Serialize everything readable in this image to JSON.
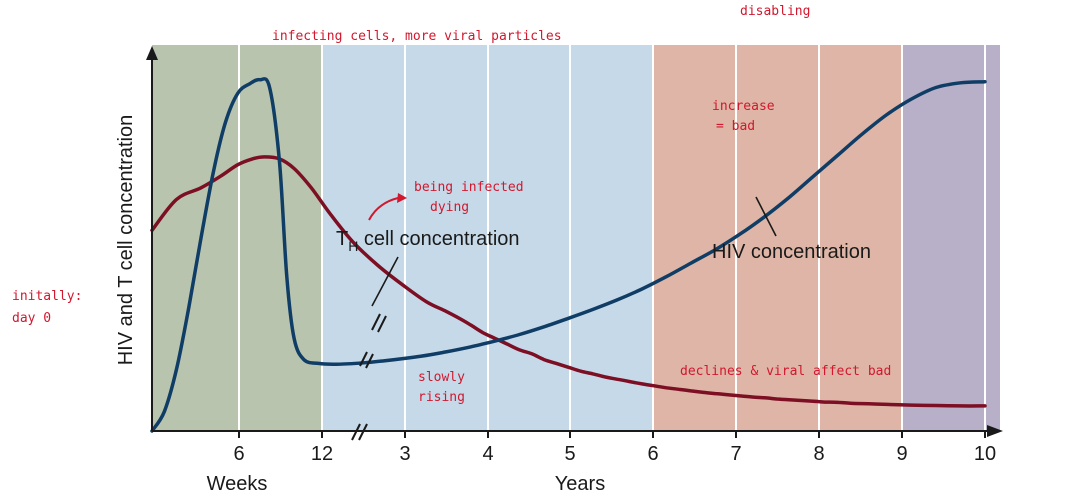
{
  "chart_data": {
    "type": "line",
    "ylabel": "HIV and T cell concentration",
    "xlabel_weeks": "Weeks",
    "xlabel_years": "Years",
    "tick_labels": [
      "6",
      "12",
      "3",
      "4",
      "5",
      "6",
      "7",
      "8",
      "9",
      "10"
    ],
    "phase_colors": [
      "#b8b0c8",
      "#b8c4ae",
      "#c6d9e8",
      "#deb5a6"
    ],
    "series": [
      {
        "name": "TH cell concentration",
        "color": "#7d0f24",
        "points": [
          [
            0,
            52
          ],
          [
            1,
            60
          ],
          [
            2,
            63
          ],
          [
            2.8,
            66
          ],
          [
            3.5,
            69
          ],
          [
            4.1,
            70.5
          ],
          [
            4.6,
            71
          ],
          [
            5.2,
            70.5
          ],
          [
            5.8,
            68
          ],
          [
            6.5,
            63
          ],
          [
            7.3,
            56
          ],
          [
            8.2,
            49
          ],
          [
            9.2,
            43
          ],
          [
            10.2,
            38
          ],
          [
            11.2,
            33.5
          ],
          [
            12,
            31
          ],
          [
            12.6,
            29
          ],
          [
            13,
            27.5
          ],
          [
            13.5,
            25.5
          ],
          [
            14,
            24
          ],
          [
            14.5,
            22.5
          ],
          [
            15,
            21
          ],
          [
            15.5,
            20
          ],
          [
            16,
            18.5
          ],
          [
            16.5,
            17.5
          ],
          [
            17,
            16.5
          ],
          [
            17.5,
            15.5
          ],
          [
            18,
            14.8
          ],
          [
            18.5,
            14
          ],
          [
            19,
            13.4
          ],
          [
            19.5,
            12.8
          ],
          [
            20,
            12.2
          ],
          [
            20.5,
            11.7
          ],
          [
            21,
            11.2
          ],
          [
            21.5,
            10.8
          ],
          [
            22,
            10.4
          ],
          [
            22.5,
            10
          ],
          [
            23,
            9.7
          ],
          [
            23.5,
            9.4
          ],
          [
            24,
            9.1
          ],
          [
            24.5,
            8.8
          ],
          [
            25,
            8.6
          ],
          [
            25.5,
            8.3
          ],
          [
            26,
            8.1
          ],
          [
            26.5,
            7.9
          ],
          [
            27,
            7.7
          ],
          [
            27.5,
            7.5
          ],
          [
            28,
            7.4
          ],
          [
            28.5,
            7.2
          ],
          [
            29,
            7.1
          ],
          [
            29.5,
            7
          ],
          [
            30,
            6.9
          ],
          [
            31,
            6.7
          ],
          [
            32,
            6.6
          ],
          [
            33,
            6.5
          ],
          [
            34,
            6.5
          ]
        ]
      },
      {
        "name": "HIV concentration",
        "color": "#0f3d66",
        "points": [
          [
            0,
            0
          ],
          [
            0.5,
            5
          ],
          [
            1,
            16
          ],
          [
            1.5,
            32
          ],
          [
            2,
            50
          ],
          [
            2.5,
            67
          ],
          [
            3,
            80
          ],
          [
            3.5,
            87.5
          ],
          [
            4,
            90
          ],
          [
            4.4,
            91
          ],
          [
            4.8,
            89
          ],
          [
            5.2,
            70
          ],
          [
            5.5,
            40
          ],
          [
            5.8,
            24
          ],
          [
            6.2,
            18.5
          ],
          [
            6.8,
            17.5
          ],
          [
            7.5,
            17.3
          ],
          [
            8.5,
            17.6
          ],
          [
            9.5,
            18.2
          ],
          [
            11,
            19.4
          ],
          [
            12,
            20.5
          ],
          [
            13,
            21.8
          ],
          [
            14,
            23.3
          ],
          [
            15,
            25
          ],
          [
            16,
            27
          ],
          [
            17,
            29.2
          ],
          [
            18,
            31.5
          ],
          [
            19,
            34
          ],
          [
            20,
            36.8
          ],
          [
            21,
            40
          ],
          [
            22,
            43.5
          ],
          [
            23,
            47
          ],
          [
            24,
            51
          ],
          [
            25,
            55.5
          ],
          [
            26,
            60.5
          ],
          [
            27,
            66
          ],
          [
            28,
            71.5
          ],
          [
            29,
            77
          ],
          [
            30,
            82
          ],
          [
            31,
            86
          ],
          [
            32,
            89
          ],
          [
            33,
            90.2
          ],
          [
            34,
            90.5
          ]
        ]
      }
    ],
    "annotations": {
      "th_label_main": "T",
      "th_label_sub": "H",
      "th_label_rest": " cell concentration",
      "hiv_label": "HIV concentration"
    }
  },
  "notes": {
    "top_disabling": "disabling",
    "top_infecting": "infecting cells, more viral particles",
    "increase_line1": "increase",
    "increase_line2": "= bad",
    "infected_line1": "being infected",
    "infected_line2": "dying",
    "initially_line1": "initally:",
    "initially_line2": "day 0",
    "slowly_line1": "slowly",
    "slowly_line2": "rising",
    "declines": "declines & viral affect bad"
  }
}
